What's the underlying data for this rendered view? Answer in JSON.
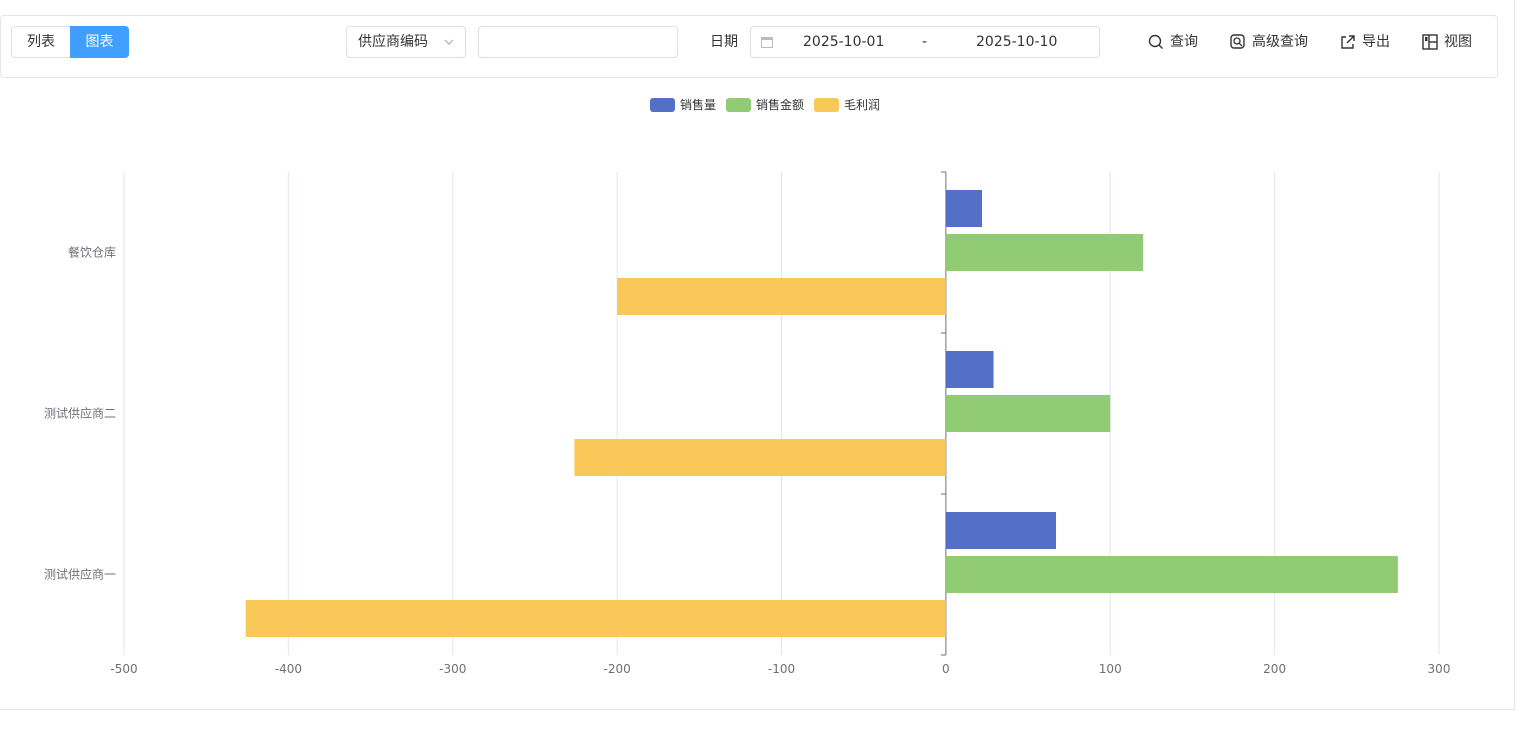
{
  "toolbar": {
    "view_tabs": [
      {
        "label": "列表",
        "active": false
      },
      {
        "label": "图表",
        "active": true
      }
    ],
    "supplier_select": {
      "value": "供应商编码"
    },
    "search_input": {
      "value": "",
      "placeholder": ""
    },
    "date_label": "日期",
    "date_range": {
      "start": "2025-10-01",
      "separator": "-",
      "end": "2025-10-10"
    },
    "actions": [
      {
        "label": "查询",
        "icon": "search-icon"
      },
      {
        "label": "高级查询",
        "icon": "advanced-search-icon"
      },
      {
        "label": "导出",
        "icon": "export-icon"
      },
      {
        "label": "视图",
        "icon": "view-layout-icon"
      }
    ]
  },
  "chart_data": {
    "type": "bar",
    "orientation": "horizontal",
    "categories": [
      "测试供应商一",
      "测试供应商二",
      "餐饮仓库"
    ],
    "series": [
      {
        "name": "销售量",
        "color": "#5470c6",
        "values": [
          67,
          29,
          22
        ]
      },
      {
        "name": "销售金额",
        "color": "#91cc75",
        "values": [
          275,
          100,
          120
        ]
      },
      {
        "name": "毛利润",
        "color": "#fac858",
        "values": [
          -426,
          -226,
          -200
        ]
      }
    ],
    "xlim": [
      -500,
      300
    ],
    "xticks": [
      -500,
      -400,
      -300,
      -200,
      -100,
      0,
      100,
      200,
      300
    ],
    "grid": true,
    "legend_position": "top-center"
  }
}
